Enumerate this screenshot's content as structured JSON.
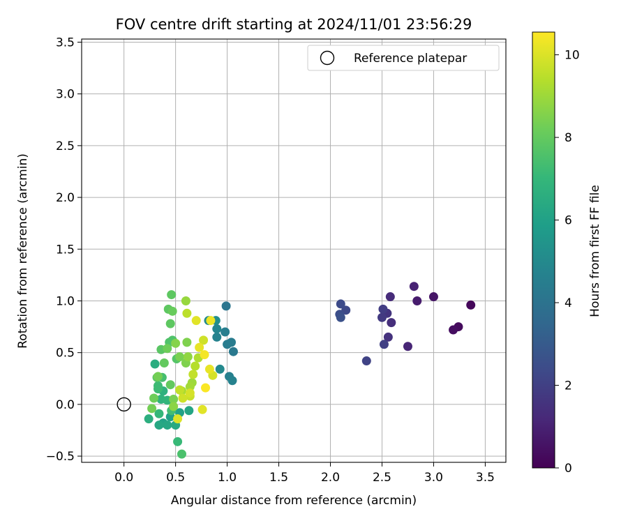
{
  "chart_data": {
    "type": "scatter",
    "title": "FOV centre drift starting at 2024/11/01 23:56:29",
    "xlabel": "Angular distance from reference (arcmin)",
    "ylabel": "Rotation from reference (arcmin)",
    "xlim": [
      -0.41,
      3.7
    ],
    "ylim": [
      -0.56,
      3.53
    ],
    "xticks": [
      "0.0",
      "0.5",
      "1.0",
      "1.5",
      "2.0",
      "2.5",
      "3.0",
      "3.5"
    ],
    "yticks": [
      "−0.5",
      "0.0",
      "0.5",
      "1.0",
      "1.5",
      "2.0",
      "2.5",
      "3.0",
      "3.5"
    ],
    "grid": true,
    "legend": {
      "position": "top-right",
      "label": "Reference platepar",
      "marker": "open-circle"
    },
    "reference_point": {
      "x": 0.0,
      "y": 0.0
    },
    "colorbar": {
      "label": "Hours from first FF file",
      "min": 0,
      "max": 10.55,
      "ticks": [
        "0",
        "2",
        "4",
        "6",
        "8",
        "10"
      ],
      "colormap": "viridis"
    },
    "series": [
      {
        "color_by": "hours",
        "points": [
          {
            "x": 3.36,
            "y": 0.96,
            "c": 0.2
          },
          {
            "x": 3.24,
            "y": 0.75,
            "c": 0.3
          },
          {
            "x": 3.19,
            "y": 0.72,
            "c": 0.4
          },
          {
            "x": 3.0,
            "y": 1.04,
            "c": 0.6
          },
          {
            "x": 2.84,
            "y": 1.0,
            "c": 0.8
          },
          {
            "x": 2.81,
            "y": 1.14,
            "c": 1.0
          },
          {
            "x": 2.75,
            "y": 0.56,
            "c": 1.1
          },
          {
            "x": 2.58,
            "y": 1.04,
            "c": 1.3
          },
          {
            "x": 2.59,
            "y": 0.79,
            "c": 1.4
          },
          {
            "x": 2.56,
            "y": 0.65,
            "c": 1.5
          },
          {
            "x": 2.55,
            "y": 0.88,
            "c": 1.6
          },
          {
            "x": 2.5,
            "y": 0.84,
            "c": 1.8
          },
          {
            "x": 2.51,
            "y": 0.92,
            "c": 1.9
          },
          {
            "x": 2.52,
            "y": 0.58,
            "c": 2.0
          },
          {
            "x": 2.35,
            "y": 0.42,
            "c": 2.1
          },
          {
            "x": 2.15,
            "y": 0.91,
            "c": 2.3
          },
          {
            "x": 2.1,
            "y": 0.97,
            "c": 2.4
          },
          {
            "x": 2.09,
            "y": 0.87,
            "c": 2.5
          },
          {
            "x": 2.1,
            "y": 0.84,
            "c": 2.6
          },
          {
            "x": 0.99,
            "y": 0.95,
            "c": 4.1
          },
          {
            "x": 1.06,
            "y": 0.51,
            "c": 4.3
          },
          {
            "x": 1.04,
            "y": 0.6,
            "c": 4.4
          },
          {
            "x": 1.0,
            "y": 0.58,
            "c": 4.4
          },
          {
            "x": 0.98,
            "y": 0.7,
            "c": 4.5
          },
          {
            "x": 1.02,
            "y": 0.27,
            "c": 4.6
          },
          {
            "x": 1.05,
            "y": 0.23,
            "c": 4.7
          },
          {
            "x": 0.9,
            "y": 0.65,
            "c": 4.7
          },
          {
            "x": 0.9,
            "y": 0.73,
            "c": 4.8
          },
          {
            "x": 0.93,
            "y": 0.34,
            "c": 5.0
          },
          {
            "x": 0.82,
            "y": 0.81,
            "c": 5.1
          },
          {
            "x": 0.89,
            "y": 0.81,
            "c": 5.2
          },
          {
            "x": 0.54,
            "y": -0.08,
            "c": 6.0
          },
          {
            "x": 0.45,
            "y": -0.12,
            "c": 6.0
          },
          {
            "x": 0.38,
            "y": -0.18,
            "c": 6.1
          },
          {
            "x": 0.63,
            "y": -0.06,
            "c": 6.2
          },
          {
            "x": 0.34,
            "y": -0.2,
            "c": 6.3
          },
          {
            "x": 0.42,
            "y": -0.2,
            "c": 6.3
          },
          {
            "x": 0.5,
            "y": -0.2,
            "c": 6.4
          },
          {
            "x": 0.3,
            "y": 0.39,
            "c": 6.5
          },
          {
            "x": 0.24,
            "y": -0.14,
            "c": 6.6
          },
          {
            "x": 0.38,
            "y": 0.13,
            "c": 6.7
          },
          {
            "x": 0.36,
            "y": 0.05,
            "c": 6.8
          },
          {
            "x": 0.42,
            "y": 0.04,
            "c": 6.9
          },
          {
            "x": 0.34,
            "y": -0.09,
            "c": 7.0
          },
          {
            "x": 0.52,
            "y": -0.36,
            "c": 7.1
          },
          {
            "x": 0.33,
            "y": 0.18,
            "c": 7.2
          },
          {
            "x": 0.33,
            "y": 0.15,
            "c": 7.2
          },
          {
            "x": 0.46,
            "y": -0.06,
            "c": 7.3
          },
          {
            "x": 0.37,
            "y": 0.26,
            "c": 7.4
          },
          {
            "x": 0.56,
            "y": -0.48,
            "c": 7.5
          },
          {
            "x": 0.44,
            "y": 0.6,
            "c": 7.6
          },
          {
            "x": 0.47,
            "y": 0.62,
            "c": 7.6
          },
          {
            "x": 0.51,
            "y": 0.44,
            "c": 7.7
          },
          {
            "x": 0.32,
            "y": 0.26,
            "c": 7.8
          },
          {
            "x": 0.36,
            "y": 0.53,
            "c": 7.8
          },
          {
            "x": 0.43,
            "y": 0.92,
            "c": 7.9
          },
          {
            "x": 0.45,
            "y": 0.78,
            "c": 7.9
          },
          {
            "x": 0.46,
            "y": 1.06,
            "c": 7.9
          },
          {
            "x": 0.45,
            "y": 0.19,
            "c": 8.0
          },
          {
            "x": 0.39,
            "y": 0.4,
            "c": 8.0
          },
          {
            "x": 0.47,
            "y": 0.9,
            "c": 8.1
          },
          {
            "x": 0.42,
            "y": 0.54,
            "c": 8.2
          },
          {
            "x": 0.29,
            "y": 0.06,
            "c": 8.2
          },
          {
            "x": 0.27,
            "y": -0.04,
            "c": 8.3
          },
          {
            "x": 0.33,
            "y": 0.27,
            "c": 8.3
          },
          {
            "x": 0.48,
            "y": 0.05,
            "c": 8.4
          },
          {
            "x": 0.54,
            "y": 0.46,
            "c": 8.4
          },
          {
            "x": 0.6,
            "y": 0.4,
            "c": 8.5
          },
          {
            "x": 0.61,
            "y": 0.6,
            "c": 8.5
          },
          {
            "x": 0.5,
            "y": 0.59,
            "c": 8.6
          },
          {
            "x": 0.48,
            "y": -0.02,
            "c": 8.7
          },
          {
            "x": 0.62,
            "y": 0.46,
            "c": 8.8
          },
          {
            "x": 0.6,
            "y": 1.0,
            "c": 8.9
          },
          {
            "x": 0.66,
            "y": 0.21,
            "c": 9.0
          },
          {
            "x": 0.64,
            "y": 0.17,
            "c": 9.1
          },
          {
            "x": 0.56,
            "y": 0.13,
            "c": 9.2
          },
          {
            "x": 0.72,
            "y": 0.45,
            "c": 9.3
          },
          {
            "x": 0.69,
            "y": 0.37,
            "c": 9.4
          },
          {
            "x": 0.61,
            "y": 0.88,
            "c": 9.5
          },
          {
            "x": 0.67,
            "y": 0.29,
            "c": 9.6
          },
          {
            "x": 0.54,
            "y": 0.14,
            "c": 9.6
          },
          {
            "x": 0.64,
            "y": 0.08,
            "c": 9.7
          },
          {
            "x": 0.77,
            "y": 0.62,
            "c": 9.8
          },
          {
            "x": 0.57,
            "y": 0.06,
            "c": 9.8
          },
          {
            "x": 0.64,
            "y": 0.11,
            "c": 9.9
          },
          {
            "x": 0.86,
            "y": 0.28,
            "c": 9.9
          },
          {
            "x": 0.52,
            "y": -0.14,
            "c": 10.0
          },
          {
            "x": 0.76,
            "y": -0.05,
            "c": 10.1
          },
          {
            "x": 0.7,
            "y": 0.81,
            "c": 10.1
          },
          {
            "x": 0.73,
            "y": 0.55,
            "c": 10.2
          },
          {
            "x": 0.83,
            "y": 0.34,
            "c": 10.2
          },
          {
            "x": 0.84,
            "y": 0.81,
            "c": 10.3
          },
          {
            "x": 0.78,
            "y": 0.48,
            "c": 10.4
          },
          {
            "x": 0.79,
            "y": 0.16,
            "c": 10.5
          }
        ]
      }
    ]
  }
}
